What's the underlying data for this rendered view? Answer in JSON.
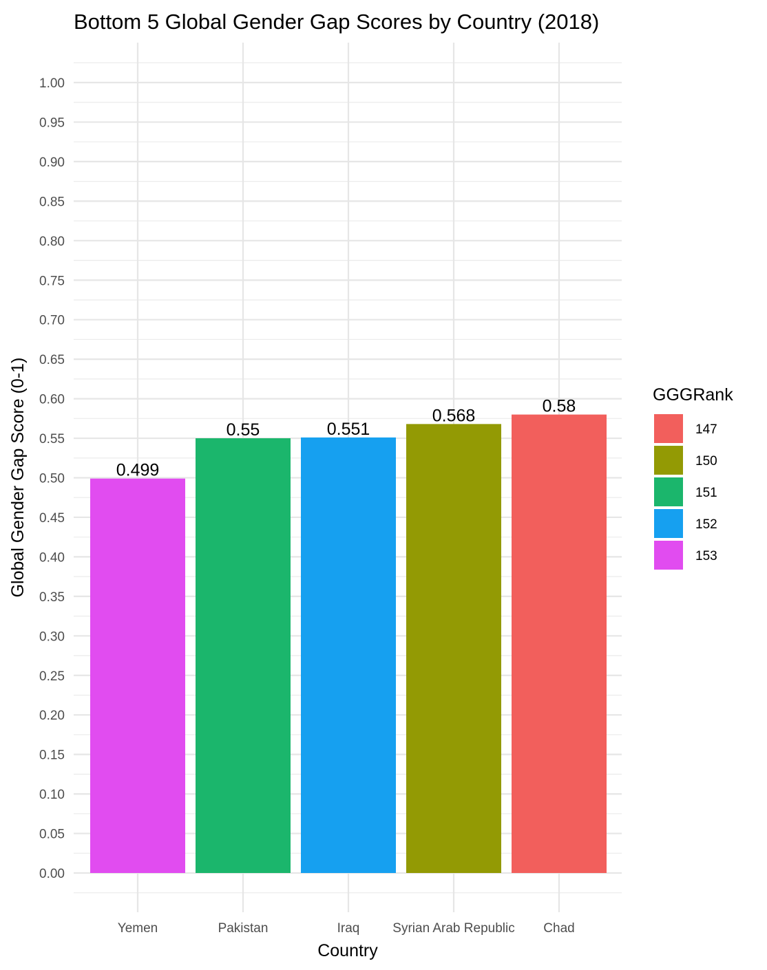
{
  "chart_data": {
    "type": "bar",
    "title": "Bottom 5 Global Gender Gap Scores by Country (2018)",
    "xlabel": "Country",
    "ylabel": "Global Gender Gap Score (0-1)",
    "categories": [
      "Yemen",
      "Pakistan",
      "Iraq",
      "Syrian Arab Republic",
      "Chad"
    ],
    "values": [
      0.499,
      0.55,
      0.551,
      0.568,
      0.58
    ],
    "data_labels": [
      "0.499",
      "0.55",
      "0.551",
      "0.568",
      "0.58"
    ],
    "ranks": [
      "153",
      "151",
      "152",
      "150",
      "147"
    ],
    "ylim": [
      0,
      1
    ],
    "y_ticks": [
      0,
      0.05,
      0.1,
      0.15,
      0.2,
      0.25,
      0.3,
      0.35,
      0.4,
      0.45,
      0.5,
      0.55,
      0.6,
      0.65,
      0.7,
      0.75,
      0.8,
      0.85,
      0.9,
      0.95,
      1.0
    ],
    "y_tick_labels": [
      "0.00",
      "0.05",
      "0.10",
      "0.15",
      "0.20",
      "0.25",
      "0.30",
      "0.35",
      "0.40",
      "0.45",
      "0.50",
      "0.55",
      "0.60",
      "0.65",
      "0.70",
      "0.75",
      "0.80",
      "0.85",
      "0.90",
      "0.95",
      "1.00"
    ],
    "grid": true,
    "legend": {
      "title": "GGGRank",
      "position": "right",
      "entries": [
        {
          "label": "147",
          "color": "#F25F5C"
        },
        {
          "label": "150",
          "color": "#939A04"
        },
        {
          "label": "151",
          "color": "#1BB66C"
        },
        {
          "label": "152",
          "color": "#16A0F0"
        },
        {
          "label": "153",
          "color": "#E14CF0"
        }
      ]
    },
    "colors": {
      "147": "#F25F5C",
      "150": "#939A04",
      "151": "#1BB66C",
      "152": "#16A0F0",
      "153": "#E14CF0"
    }
  }
}
